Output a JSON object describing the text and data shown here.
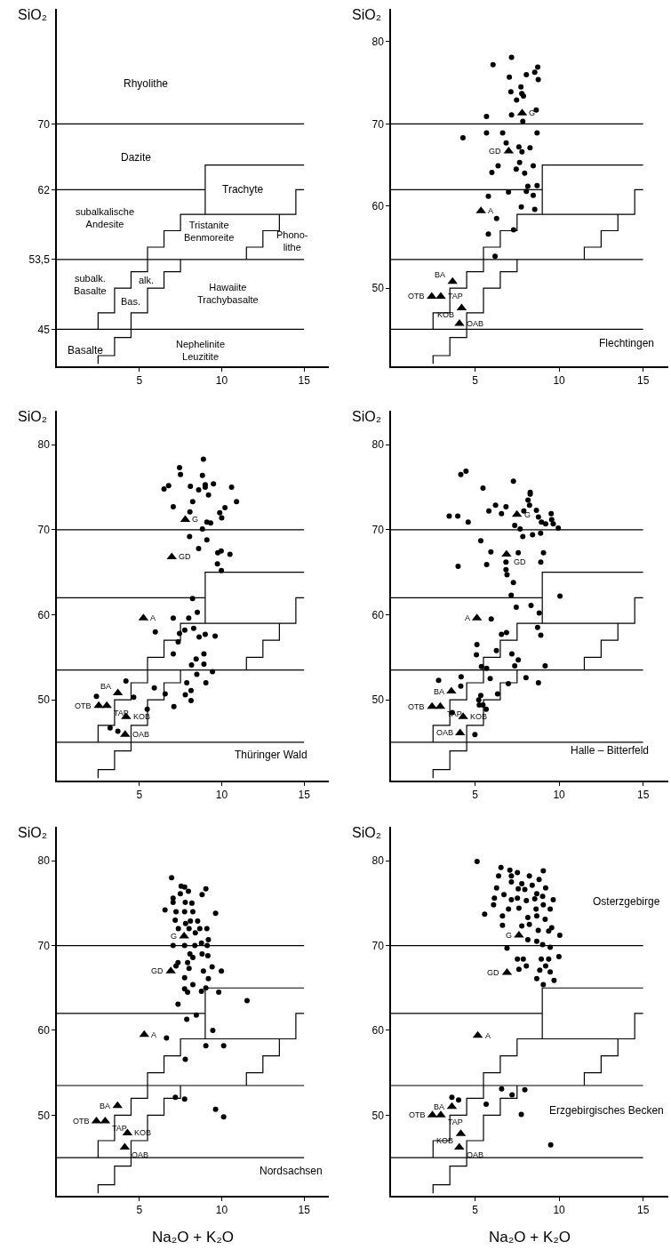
{
  "chart_data": [
    {
      "type": "line",
      "ylabel": "SiO₂",
      "xlim": [
        0,
        16.5
      ],
      "ylim": [
        40.5,
        84
      ],
      "xticks": [
        5,
        10,
        15
      ],
      "yticks": [
        45,
        {
          "value": 53.5,
          "label": "53,5"
        },
        62,
        70
      ],
      "series": [
        {
          "color": "#000000",
          "x": [
            0,
            15
          ],
          "values": [
            70,
            70
          ]
        },
        {
          "color": "#000000",
          "x": [
            0,
            9,
            9,
            9,
            15
          ],
          "values": [
            62,
            62,
            59,
            65,
            65
          ]
        },
        {
          "color": "#000000",
          "x": [
            0,
            15
          ],
          "values": [
            53.5,
            53.5
          ]
        },
        {
          "color": "#000000",
          "x": [
            0,
            15
          ],
          "values": [
            45,
            45
          ]
        },
        {
          "color": "#000000",
          "x": [
            2.5,
            2.5,
            3.5,
            3.5,
            4.5,
            4.5,
            5.5,
            5.5,
            6.5,
            6.5,
            7.5,
            7.5,
            14.5,
            14.5,
            15
          ],
          "values": [
            45,
            47,
            47,
            50,
            50,
            52,
            52,
            55,
            55,
            57,
            57,
            59,
            59,
            62,
            62
          ]
        },
        {
          "color": "#000000",
          "x": [
            13.5,
            13.5,
            12.5,
            12.5,
            11.5,
            11.5
          ],
          "values": [
            59,
            57,
            57,
            55,
            55,
            53.5
          ]
        },
        {
          "color": "#000000",
          "x": [
            2.5,
            2.5,
            3.5,
            3.5,
            4.5,
            4.5,
            5.5,
            5.5,
            6.5,
            6.5,
            7.5,
            7.5
          ],
          "values": [
            40.8,
            41.8,
            41.8,
            44,
            44,
            47,
            47,
            50,
            50,
            52,
            52,
            53.5
          ]
        }
      ],
      "annotations": [
        "Rhyolithe",
        "Dazite",
        "Trachyte",
        "subalkalische\nAndesite",
        "Tristanite\nBenmoreite",
        "Phono-\nlithe",
        "subalk.\nBasalte",
        "alk.",
        "Bas.",
        "Hawaiite\nTrachybasalte",
        "Basalte",
        "Nephelinite\nLeuzitite"
      ]
    },
    {
      "type": "scatter",
      "ylabel": "SiO₂",
      "xlim": [
        0,
        16.5
      ],
      "ylim": [
        40.5,
        84
      ],
      "xticks": [
        5,
        10,
        15
      ],
      "yticks": [
        50,
        60,
        70,
        80
      ],
      "series": [
        {
          "type": "line",
          "color": "#000000",
          "x": [
            0,
            15
          ],
          "values": [
            70,
            70
          ]
        },
        {
          "type": "line",
          "color": "#000000",
          "x": [
            0,
            9,
            9,
            9,
            15
          ],
          "values": [
            62,
            62,
            59,
            65,
            65
          ]
        },
        {
          "type": "line",
          "color": "#000000",
          "x": [
            0,
            15
          ],
          "values": [
            53.5,
            53.5
          ]
        },
        {
          "type": "line",
          "color": "#000000",
          "x": [
            0,
            15
          ],
          "values": [
            45,
            45
          ]
        },
        {
          "type": "line",
          "color": "#000000",
          "x": [
            2.5,
            2.5,
            3.5,
            3.5,
            4.5,
            4.5,
            5.5,
            5.5,
            6.5,
            6.5,
            7.5,
            7.5,
            14.5,
            14.5,
            15
          ],
          "values": [
            45,
            47,
            47,
            50,
            50,
            52,
            52,
            55,
            55,
            57,
            57,
            59,
            59,
            62,
            62
          ]
        },
        {
          "type": "line",
          "color": "#000000",
          "x": [
            13.5,
            13.5,
            12.5,
            12.5,
            11.5,
            11.5
          ],
          "values": [
            59,
            57,
            57,
            55,
            55,
            53.5
          ]
        },
        {
          "type": "line",
          "color": "#000000",
          "x": [
            2.5,
            2.5,
            3.5,
            3.5,
            4.5,
            4.5,
            5.5,
            5.5,
            6.5,
            6.5,
            7.5,
            7.5
          ],
          "values": [
            40.8,
            41.8,
            41.8,
            44,
            44,
            47,
            47,
            50,
            50,
            52,
            52,
            53.5
          ]
        },
        {
          "marker": "circle",
          "color": "#000000",
          "x": [
            7.17,
            6.07,
            7.04,
            8.05,
            8.55,
            8.73,
            8.76,
            7.13,
            7.73,
            7.78,
            7.88,
            7.47,
            7.17,
            8.64,
            7.84,
            5.68,
            4.28,
            5.68,
            6.64,
            6.85,
            7.61,
            7.79,
            8.27,
            8.69,
            6.37,
            6.0,
            7.65,
            7.45,
            7.95,
            8.46,
            8.14,
            8.69,
            6.99,
            8.05,
            8.46,
            5.79,
            7.75,
            8.55,
            6.28,
            5.79,
            7.29,
            6.19
          ],
          "values": [
            78.1,
            77.2,
            75.7,
            76.0,
            76.3,
            76.9,
            75.4,
            73.9,
            74.5,
            73.7,
            73.4,
            72.9,
            71.1,
            71.7,
            70.3,
            70.9,
            68.3,
            68.9,
            68.9,
            67.7,
            67.2,
            66.6,
            67.1,
            68.9,
            64.9,
            64.1,
            65.3,
            64.5,
            64.0,
            64.9,
            62.4,
            62.5,
            61.7,
            61.8,
            61.3,
            61.2,
            59.9,
            59.6,
            58.5,
            56.6,
            57.1,
            53.9
          ]
        },
        {
          "marker": "triangle",
          "color": "#000000",
          "x": [
            3.66,
            2.42,
            2.96,
            4.2,
            4.07,
            5.35,
            7.0,
            7.8
          ],
          "values": [
            50.8,
            49.0,
            49.0,
            47.6,
            45.7,
            59.4,
            66.7,
            71.3
          ]
        }
      ],
      "annotations": [
        {
          "text": "BA",
          "x": 3.66,
          "y": 50.8
        },
        {
          "text": "OTB",
          "x": 2.42,
          "y": 49.0
        },
        {
          "text": "TAP",
          "x": 2.96,
          "y": 49.0
        },
        {
          "text": "KOB",
          "x": 4.2,
          "y": 47.6
        },
        {
          "text": "OAB",
          "x": 4.07,
          "y": 45.7
        },
        {
          "text": "A",
          "x": 5.35,
          "y": 59.4
        },
        {
          "text": "GD",
          "x": 7.0,
          "y": 66.7
        },
        {
          "text": "G",
          "x": 7.8,
          "y": 71.3
        },
        "Flechtingen"
      ]
    },
    {
      "type": "scatter",
      "ylabel": "SiO₂",
      "xlim": [
        0,
        16.5
      ],
      "ylim": [
        40.5,
        84
      ],
      "xticks": [
        5,
        10,
        15
      ],
      "yticks": [
        50,
        60,
        70,
        80
      ],
      "series": [
        {
          "type": "line",
          "color": "#000000",
          "x": [
            0,
            15
          ],
          "values": [
            70,
            70
          ]
        },
        {
          "type": "line",
          "color": "#000000",
          "x": [
            0,
            9,
            9,
            9,
            15
          ],
          "values": [
            62,
            62,
            59,
            65,
            65
          ]
        },
        {
          "type": "line",
          "color": "#000000",
          "x": [
            0,
            15
          ],
          "values": [
            53.5,
            53.5
          ]
        },
        {
          "type": "line",
          "color": "#000000",
          "x": [
            0,
            15
          ],
          "values": [
            45,
            45
          ]
        },
        {
          "type": "line",
          "color": "#000000",
          "x": [
            2.5,
            2.5,
            3.5,
            3.5,
            4.5,
            4.5,
            5.5,
            5.5,
            6.5,
            6.5,
            7.5,
            7.5,
            14.5,
            14.5,
            15
          ],
          "values": [
            45,
            47,
            47,
            50,
            50,
            52,
            52,
            55,
            55,
            57,
            57,
            59,
            59,
            62,
            62
          ]
        },
        {
          "type": "line",
          "color": "#000000",
          "x": [
            13.5,
            13.5,
            12.5,
            12.5,
            11.5,
            11.5
          ],
          "values": [
            59,
            57,
            57,
            55,
            55,
            53.5
          ]
        },
        {
          "type": "line",
          "color": "#000000",
          "x": [
            2.5,
            2.5,
            3.5,
            3.5,
            4.5,
            4.5,
            5.5,
            5.5,
            6.5,
            6.5,
            7.5,
            7.5
          ],
          "values": [
            40.8,
            41.8,
            41.8,
            44,
            44,
            47,
            47,
            50,
            50,
            52,
            52,
            53.5
          ]
        },
        {
          "marker": "circle",
          "color": "#000000",
          "x": [
            8.89,
            7.44,
            7.5,
            8.83,
            9.0,
            9.0,
            9.5,
            6.78,
            6.5,
            8.1,
            8.6,
            10.6,
            9.2,
            8.24,
            10.9,
            7.06,
            8.07,
            9.88,
            10.2,
            10.0,
            9.1,
            9.33,
            8.83,
            8.05,
            9.1,
            8.6,
            9.76,
            9.97,
            10.5,
            9.74,
            9.98,
            8.23,
            8.52,
            7.06,
            8.0,
            5.97,
            7.76,
            8.3,
            7.44,
            7.36,
            8.63,
            9.0,
            9.6,
            7.06,
            8.92,
            8.45,
            8.17,
            8.92,
            9.44,
            8.49,
            4.19,
            7.88,
            9.04,
            5.91,
            2.4,
            6.57,
            8.14,
            7.79,
            8.14,
            7.1,
            4.66,
            5.48,
            3.23,
            3.7
          ],
          "values": [
            78.3,
            77.3,
            76.5,
            76.4,
            75.3,
            75.0,
            75.4,
            75.2,
            74.8,
            75.1,
            74.7,
            75.0,
            74.1,
            73.3,
            73.3,
            72.7,
            72.1,
            72.0,
            72.6,
            71.4,
            70.9,
            70.8,
            70.1,
            69.2,
            68.8,
            67.8,
            67.3,
            67.5,
            67.1,
            66.0,
            65.2,
            61.9,
            60.3,
            59.6,
            59.6,
            58.0,
            58.2,
            58.4,
            57.8,
            56.8,
            57.4,
            57.7,
            57.5,
            55.4,
            55.4,
            54.8,
            54.1,
            54.2,
            53.3,
            53.0,
            52.2,
            52.0,
            52.0,
            51.4,
            50.4,
            50.7,
            51.1,
            50.6,
            49.9,
            49.2,
            50.3,
            48.9,
            46.7,
            46.3
          ]
        },
        {
          "marker": "triangle",
          "color": "#000000",
          "x": [
            3.7,
            2.54,
            3.03,
            4.2,
            4.14,
            5.25,
            6.97,
            7.79
          ],
          "values": [
            50.8,
            49.3,
            49.3,
            48.0,
            45.9,
            59.6,
            66.8,
            71.2
          ]
        }
      ],
      "annotations": [
        {
          "text": "BA",
          "x": 3.7,
          "y": 50.8
        },
        {
          "text": "OTB",
          "x": 2.54,
          "y": 49.3
        },
        {
          "text": "TAP",
          "x": 3.03,
          "y": 49.3
        },
        {
          "text": "KOB",
          "x": 4.2,
          "y": 48.0
        },
        {
          "text": "OAB",
          "x": 4.14,
          "y": 45.9
        },
        {
          "text": "A",
          "x": 5.25,
          "y": 59.6
        },
        {
          "text": "GD",
          "x": 6.97,
          "y": 66.8
        },
        {
          "text": "G",
          "x": 7.79,
          "y": 71.2
        },
        "Thüringer Wald"
      ]
    },
    {
      "type": "scatter",
      "ylabel": "SiO₂",
      "xlim": [
        0,
        16.5
      ],
      "ylim": [
        40.5,
        84
      ],
      "xticks": [
        5,
        10,
        15
      ],
      "yticks": [
        50,
        60,
        70,
        80
      ],
      "series": [
        {
          "type": "line",
          "color": "#000000",
          "x": [
            0,
            15
          ],
          "values": [
            70,
            70
          ]
        },
        {
          "type": "line",
          "color": "#000000",
          "x": [
            0,
            9,
            9,
            9,
            15
          ],
          "values": [
            62,
            62,
            59,
            65,
            65
          ]
        },
        {
          "type": "line",
          "color": "#000000",
          "x": [
            0,
            15
          ],
          "values": [
            53.5,
            53.5
          ]
        },
        {
          "type": "line",
          "color": "#000000",
          "x": [
            0,
            15
          ],
          "values": [
            45,
            45
          ]
        },
        {
          "type": "line",
          "color": "#000000",
          "x": [
            2.5,
            2.5,
            3.5,
            3.5,
            4.5,
            4.5,
            5.5,
            5.5,
            6.5,
            6.5,
            7.5,
            7.5,
            14.5,
            14.5,
            15
          ],
          "values": [
            45,
            47,
            47,
            50,
            50,
            52,
            52,
            55,
            55,
            57,
            57,
            59,
            59,
            62,
            62
          ]
        },
        {
          "type": "line",
          "color": "#000000",
          "x": [
            13.5,
            13.5,
            12.5,
            12.5,
            11.5,
            11.5
          ],
          "values": [
            59,
            57,
            57,
            55,
            55,
            53.5
          ]
        },
        {
          "type": "line",
          "color": "#000000",
          "x": [
            2.5,
            2.5,
            3.5,
            3.5,
            4.5,
            4.5,
            5.5,
            5.5,
            6.5,
            6.5,
            7.5,
            7.5
          ],
          "values": [
            40.8,
            41.8,
            41.8,
            44,
            44,
            47,
            47,
            50,
            50,
            52,
            52,
            53.5
          ]
        },
        {
          "marker": "circle",
          "color": "#000000",
          "x": [
            4.15,
            4.46,
            7.28,
            5.47,
            8.28,
            8.28,
            3.46,
            3.97,
            4.59,
            5.82,
            6.22,
            6.57,
            6.84,
            7.9,
            8.15,
            8.24,
            8.65,
            8.77,
            9.53,
            9.56,
            9.65,
            8.95,
            9.2,
            9.95,
            7.36,
            7.68,
            7.84,
            8.42,
            8.9,
            5.34,
            5.94,
            7.57,
            9.07,
            6.84,
            6.84,
            6.9,
            8.91,
            5.69,
            3.99,
            7.28,
            7.15,
            8.33,
            7.45,
            10.05,
            8.82,
            5.96,
            8.72,
            8.91,
            6.57,
            6.87,
            5.11,
            5.08,
            6.27,
            7.19,
            7.57,
            9.17,
            7.36,
            5.38,
            5.69,
            8.03,
            8.77,
            6.98,
            6.34,
            5.34,
            5.22,
            5.25,
            5.47,
            5.66,
            4.99,
            2.83,
            4.17,
            4.15,
            5.9,
            3.64
          ],
          "values": [
            76.5,
            76.9,
            75.7,
            74.9,
            74.4,
            74.2,
            71.6,
            71.6,
            70.9,
            72.2,
            72.9,
            71.9,
            72.7,
            72.2,
            73.5,
            72.9,
            72.3,
            71.5,
            71.9,
            71.2,
            70.7,
            70.9,
            70.7,
            70.2,
            70.5,
            70.1,
            69.2,
            69.4,
            69.6,
            68.7,
            67.4,
            67.3,
            67.3,
            66.2,
            65.3,
            64.7,
            66.2,
            65.9,
            65.7,
            63.8,
            62.3,
            61.1,
            60.9,
            62.2,
            60.2,
            59.5,
            58.5,
            57.6,
            57.7,
            57.9,
            56.5,
            55.3,
            55.8,
            55.4,
            54.7,
            54.0,
            54.0,
            53.9,
            53.7,
            52.6,
            52.0,
            51.9,
            50.7,
            50.5,
            50.0,
            49.4,
            49.4,
            48.9,
            45.9,
            52.3,
            52.7,
            51.6,
            52.5,
            48.5
          ]
        },
        {
          "marker": "triangle",
          "color": "#000000",
          "x": [
            3.59,
            2.44,
            2.93,
            4.29,
            4.11,
            5.11,
            6.87,
            7.49
          ],
          "values": [
            51.0,
            49.2,
            49.2,
            48.0,
            46.1,
            59.6,
            67.1,
            71.8
          ]
        }
      ],
      "annotations": [
        {
          "text": "BA",
          "x": 3.59,
          "y": 51.0
        },
        {
          "text": "OTB",
          "x": 2.44,
          "y": 49.2
        },
        {
          "text": "TAP",
          "x": 2.93,
          "y": 49.2
        },
        {
          "text": "KOB",
          "x": 4.29,
          "y": 48.0
        },
        {
          "text": "OAB",
          "x": 4.11,
          "y": 46.1
        },
        {
          "text": "A",
          "x": 5.11,
          "y": 59.6
        },
        {
          "text": "GD",
          "x": 6.87,
          "y": 67.1
        },
        {
          "text": "G",
          "x": 7.49,
          "y": 71.8
        },
        "Halle – Bitterfeld"
      ]
    },
    {
      "type": "scatter",
      "ylabel": "SiO₂",
      "xlabel": "Na₂O + K₂O",
      "xlim": [
        0,
        16.5
      ],
      "ylim": [
        40.5,
        84
      ],
      "xticks": [
        5,
        10,
        15
      ],
      "yticks": [
        50,
        60,
        70,
        80
      ],
      "series": [
        {
          "type": "line",
          "color": "#000000",
          "x": [
            0,
            15
          ],
          "values": [
            70,
            70
          ]
        },
        {
          "type": "line",
          "color": "#000000",
          "x": [
            0,
            9,
            9,
            9,
            15
          ],
          "values": [
            62,
            62,
            59,
            65,
            65
          ]
        },
        {
          "type": "line",
          "color": "#000000",
          "x": [
            0,
            15
          ],
          "values": [
            53.5,
            53.5
          ]
        },
        {
          "type": "line",
          "color": "#000000",
          "x": [
            0,
            15
          ],
          "values": [
            45,
            45
          ]
        },
        {
          "type": "line",
          "color": "#000000",
          "x": [
            2.5,
            2.5,
            3.5,
            3.5,
            4.5,
            4.5,
            5.5,
            5.5,
            6.5,
            6.5,
            7.5,
            7.5,
            14.5,
            14.5,
            15
          ],
          "values": [
            45,
            47,
            47,
            50,
            50,
            52,
            52,
            55,
            55,
            57,
            57,
            59,
            59,
            62,
            62
          ]
        },
        {
          "type": "line",
          "color": "#000000",
          "x": [
            13.5,
            13.5,
            12.5,
            12.5,
            11.5,
            11.5
          ],
          "values": [
            59,
            57,
            57,
            55,
            55,
            53.5
          ]
        },
        {
          "type": "line",
          "color": "#000000",
          "x": [
            2.5,
            2.5,
            3.5,
            3.5,
            4.5,
            4.5,
            5.5,
            5.5,
            6.5,
            6.5,
            7.5,
            7.5
          ],
          "values": [
            40.8,
            41.8,
            41.8,
            44,
            44,
            47,
            47,
            50,
            50,
            52,
            52,
            53.5
          ]
        },
        {
          "marker": "circle",
          "color": "#000000",
          "x": [
            6.96,
            7.54,
            7.75,
            9.04,
            7.05,
            7.05,
            7.49,
            7.98,
            8.81,
            7.79,
            8.19,
            6.56,
            7.23,
            7.75,
            8.25,
            9.63,
            7.18,
            8.1,
            8.54,
            7.37,
            7.81,
            8.02,
            8.67,
            9.1,
            8.4,
            7.05,
            7.75,
            8.37,
            8.77,
            9.12,
            9.19,
            8.07,
            8.81,
            8.25,
            9.16,
            7.35,
            7.93,
            7.23,
            8.02,
            8.89,
            9.42,
            9.98,
            7.75,
            8.25,
            9.19,
            7.75,
            7.93,
            8.77,
            9.04,
            9.82,
            11.54,
            7.35,
            7.88,
            8.46,
            9.46,
            6.65,
            9.04,
            10.12,
            7.79,
            7.19,
            7.75,
            9.63,
            10.12
          ],
          "values": [
            78.0,
            77.0,
            76.9,
            76.7,
            75.6,
            75.1,
            76.1,
            76.4,
            76.0,
            75.1,
            75.0,
            74.2,
            74.0,
            74.0,
            74.0,
            73.8,
            73.0,
            72.9,
            72.9,
            72.0,
            72.6,
            72.0,
            72.0,
            72.0,
            71.5,
            70.0,
            70.0,
            70.0,
            70.3,
            70.0,
            70.7,
            69.0,
            69.0,
            68.6,
            68.8,
            68.0,
            68.0,
            67.6,
            67.3,
            67.0,
            67.5,
            67.0,
            66.2,
            65.4,
            66.1,
            64.9,
            64.5,
            64.6,
            65.0,
            64.5,
            63.5,
            63.1,
            61.3,
            61.8,
            60.0,
            59.1,
            58.2,
            58.2,
            56.6,
            52.1,
            51.9,
            50.7,
            49.8
          ]
        },
        {
          "marker": "triangle",
          "color": "#000000",
          "x": [
            3.68,
            2.4,
            2.93,
            4.28,
            4.12,
            5.3,
            6.91,
            7.72
          ],
          "values": [
            51.1,
            49.3,
            49.3,
            47.9,
            46.2,
            59.5,
            67.0,
            71.1
          ]
        }
      ],
      "annotations": [
        {
          "text": "BA",
          "x": 3.68,
          "y": 51.1
        },
        {
          "text": "OTB",
          "x": 2.4,
          "y": 49.3
        },
        {
          "text": "TAP",
          "x": 2.93,
          "y": 49.3
        },
        {
          "text": "KOB",
          "x": 4.28,
          "y": 47.9
        },
        {
          "text": "OAB",
          "x": 4.12,
          "y": 46.2
        },
        {
          "text": "A",
          "x": 5.3,
          "y": 59.5
        },
        {
          "text": "GD",
          "x": 6.91,
          "y": 67.0
        },
        {
          "text": "G",
          "x": 7.72,
          "y": 71.1
        },
        "Nordsachsen"
      ]
    },
    {
      "type": "scatter",
      "ylabel": "SiO₂",
      "xlabel": "Na₂O + K₂O",
      "xlim": [
        0,
        16.5
      ],
      "ylim": [
        40.5,
        84
      ],
      "xticks": [
        5,
        10,
        15
      ],
      "yticks": [
        50,
        60,
        70,
        80
      ],
      "series": [
        {
          "type": "line",
          "color": "#000000",
          "x": [
            0,
            15
          ],
          "values": [
            70,
            70
          ]
        },
        {
          "type": "line",
          "color": "#000000",
          "x": [
            0,
            9,
            9,
            9,
            15
          ],
          "values": [
            62,
            62,
            59,
            65,
            65
          ]
        },
        {
          "type": "line",
          "color": "#000000",
          "x": [
            0,
            15
          ],
          "values": [
            53.5,
            53.5
          ]
        },
        {
          "type": "line",
          "color": "#000000",
          "x": [
            0,
            15
          ],
          "values": [
            45,
            45
          ]
        },
        {
          "type": "line",
          "color": "#000000",
          "x": [
            2.5,
            2.5,
            3.5,
            3.5,
            4.5,
            4.5,
            5.5,
            5.5,
            6.5,
            6.5,
            7.5,
            7.5,
            14.5,
            14.5,
            15
          ],
          "values": [
            45,
            47,
            47,
            50,
            50,
            52,
            52,
            55,
            55,
            57,
            57,
            59,
            59,
            62,
            62
          ]
        },
        {
          "type": "line",
          "color": "#000000",
          "x": [
            13.5,
            13.5,
            12.5,
            12.5,
            11.5,
            11.5
          ],
          "values": [
            59,
            57,
            57,
            55,
            55,
            53.5
          ]
        },
        {
          "type": "line",
          "color": "#000000",
          "x": [
            2.5,
            2.5,
            3.5,
            3.5,
            4.5,
            4.5,
            5.5,
            5.5,
            6.5,
            6.5,
            7.5,
            7.5
          ],
          "values": [
            40.8,
            41.8,
            41.8,
            44,
            44,
            47,
            47,
            50,
            50,
            52,
            52,
            53.5
          ]
        },
        {
          "marker": "circle",
          "color": "#000000",
          "x": [
            5.12,
            9.06,
            6.54,
            7.07,
            7.52,
            6.4,
            7.16,
            8.23,
            8.81,
            6.28,
            7.16,
            7.78,
            7.96,
            8.4,
            9.2,
            6.72,
            7.57,
            8.67,
            6.15,
            7.16,
            7.52,
            8.05,
            8.55,
            9.02,
            9.65,
            6.1,
            6.99,
            7.61,
            8.63,
            9.06,
            9.47,
            5.57,
            6.63,
            8.14,
            8.67,
            9.17,
            7.78,
            6.63,
            8.23,
            8.76,
            9.56,
            10.04,
            9.38,
            6.9,
            8.14,
            8.67,
            9.02,
            9.47,
            9.99,
            7.52,
            7.87,
            8.05,
            7.61,
            8.94,
            9.38,
            8.85,
            9.2,
            9.47,
            9.7,
            8.67,
            9.06,
            3.62,
            4.02,
            6.58,
            7.2,
            7.96,
            5.66,
            7.75,
            9.5
          ],
          "values": [
            79.9,
            78.8,
            79.2,
            78.9,
            78.6,
            78.2,
            78.2,
            78.2,
            77.8,
            76.8,
            77.5,
            77.3,
            76.6,
            77.1,
            76.8,
            76.0,
            76.7,
            76.1,
            75.6,
            75.4,
            75.6,
            75.3,
            75.5,
            75.8,
            75.4,
            74.8,
            74.3,
            74.4,
            74.3,
            74.8,
            74.3,
            73.7,
            73.5,
            73.3,
            73.5,
            73.1,
            72.3,
            72.4,
            72.5,
            71.8,
            72.1,
            71.2,
            71.7,
            69.7,
            70.7,
            70.5,
            70.1,
            69.8,
            68.7,
            68.4,
            68.4,
            67.6,
            67.2,
            68.4,
            68.4,
            67.1,
            67.6,
            66.9,
            65.9,
            66.1,
            65.4,
            52.1,
            51.8,
            53.1,
            52.4,
            53.0,
            51.3,
            50.1,
            46.5
          ]
        },
        {
          "marker": "triangle",
          "color": "#000000",
          "x": [
            3.62,
            2.46,
            2.96,
            4.15,
            4.06,
            5.16,
            6.9,
            7.61
          ],
          "values": [
            51.0,
            50.0,
            50.0,
            47.8,
            46.2,
            59.4,
            66.8,
            71.2
          ]
        }
      ],
      "annotations": [
        {
          "text": "BA",
          "x": 3.62,
          "y": 51.0
        },
        {
          "text": "OTB",
          "x": 2.46,
          "y": 50.0
        },
        {
          "text": "TAP",
          "x": 2.96,
          "y": 50.0
        },
        {
          "text": "KOB",
          "x": 4.15,
          "y": 47.8
        },
        {
          "text": "OAB",
          "x": 4.06,
          "y": 46.2
        },
        {
          "text": "A",
          "x": 5.16,
          "y": 59.4
        },
        {
          "text": "GD",
          "x": 6.9,
          "y": 66.8
        },
        {
          "text": "G",
          "x": 7.61,
          "y": 71.2
        },
        "Osterzgebirge",
        "Erzgebirgisches Becken"
      ]
    }
  ]
}
